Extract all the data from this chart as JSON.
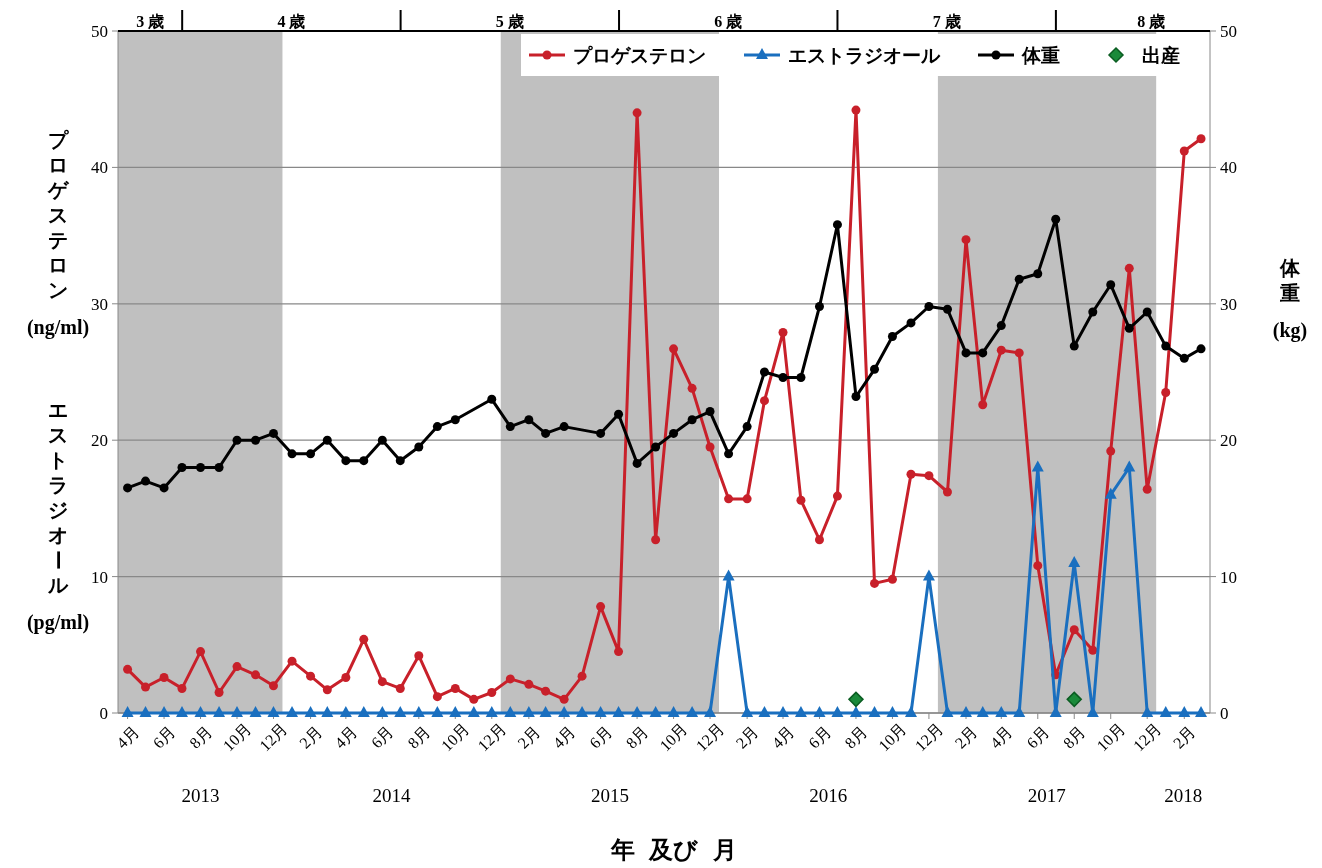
{
  "chart_data": {
    "type": "line",
    "x": [
      "2013-04",
      "2013-05",
      "2013-06",
      "2013-07",
      "2013-08",
      "2013-09",
      "2013-10",
      "2013-11",
      "2013-12",
      "2014-01",
      "2014-02",
      "2014-03",
      "2014-04",
      "2014-05",
      "2014-06",
      "2014-07",
      "2014-08",
      "2014-09",
      "2014-10",
      "2014-11",
      "2014-12",
      "2015-01",
      "2015-02",
      "2015-03",
      "2015-04",
      "2015-05",
      "2015-06",
      "2015-07",
      "2015-08",
      "2015-09",
      "2015-10",
      "2015-11",
      "2015-12",
      "2016-01",
      "2016-02",
      "2016-03",
      "2016-04",
      "2016-05",
      "2016-06",
      "2016-07",
      "2016-08",
      "2016-09",
      "2016-10",
      "2016-11",
      "2016-12",
      "2017-01",
      "2017-02",
      "2017-03",
      "2017-04",
      "2017-05",
      "2017-06",
      "2017-07",
      "2017-08",
      "2017-09",
      "2017-10",
      "2017-11",
      "2017-12",
      "2018-01",
      "2018-02",
      "2018-03"
    ],
    "xlim": [
      "2013-03-16",
      "2018-03-16"
    ],
    "xticks": [
      {
        "value": "2013-04",
        "label": "4月"
      },
      {
        "value": "2013-06",
        "label": "6月"
      },
      {
        "value": "2013-08",
        "label": "8月"
      },
      {
        "value": "2013-10",
        "label": "10月"
      },
      {
        "value": "2013-12",
        "label": "12月"
      },
      {
        "value": "2014-02",
        "label": "2月"
      },
      {
        "value": "2014-04",
        "label": "4月"
      },
      {
        "value": "2014-06",
        "label": "6月"
      },
      {
        "value": "2014-08",
        "label": "8月"
      },
      {
        "value": "2014-10",
        "label": "10月"
      },
      {
        "value": "2014-12",
        "label": "12月"
      },
      {
        "value": "2015-02",
        "label": "2月"
      },
      {
        "value": "2015-04",
        "label": "4月"
      },
      {
        "value": "2015-06",
        "label": "6月"
      },
      {
        "value": "2015-08",
        "label": "8月"
      },
      {
        "value": "2015-10",
        "label": "10月"
      },
      {
        "value": "2015-12",
        "label": "12月"
      },
      {
        "value": "2016-02",
        "label": "2月"
      },
      {
        "value": "2016-04",
        "label": "4月"
      },
      {
        "value": "2016-06",
        "label": "6月"
      },
      {
        "value": "2016-08",
        "label": "8月"
      },
      {
        "value": "2016-10",
        "label": "10月"
      },
      {
        "value": "2016-12",
        "label": "12月"
      },
      {
        "value": "2017-02",
        "label": "2月"
      },
      {
        "value": "2017-04",
        "label": "4月"
      },
      {
        "value": "2017-06",
        "label": "6月"
      },
      {
        "value": "2017-08",
        "label": "8月"
      },
      {
        "value": "2017-10",
        "label": "10月"
      },
      {
        "value": "2017-12",
        "label": "12月"
      },
      {
        "value": "2018-02",
        "label": "2月"
      }
    ],
    "xlabel": "年 及び 月",
    "ylabel": "プロゲステロン(ng/ml)\nエストラジオール(pg/ml)",
    "y2label": "体重(kg)",
    "ylim": [
      0,
      50
    ],
    "yticks": [
      0,
      10,
      20,
      30,
      40,
      50
    ],
    "y2lim": [
      0,
      50
    ],
    "y2ticks": [
      0,
      10,
      20,
      30,
      40,
      50
    ],
    "grid": "y",
    "legend": "top",
    "line_style": "solid",
    "series": [
      {
        "name": "プロゲステロン",
        "color": "#c8202a",
        "marker": "circle",
        "values": [
          3.2,
          1.9,
          2.6,
          1.8,
          4.5,
          1.5,
          3.4,
          2.8,
          2.0,
          3.8,
          2.7,
          1.7,
          2.6,
          5.4,
          2.3,
          1.8,
          4.2,
          1.2,
          1.8,
          1.0,
          1.5,
          2.5,
          2.1,
          1.6,
          1.0,
          2.7,
          7.8,
          4.5,
          44.0,
          12.7,
          26.7,
          23.8,
          19.5,
          15.7,
          15.7,
          22.9,
          27.9,
          15.6,
          12.7,
          15.9,
          44.2,
          9.5,
          9.8,
          17.5,
          17.4,
          16.2,
          34.7,
          22.6,
          26.6,
          26.4,
          10.8,
          2.8,
          6.1,
          4.6,
          19.2,
          32.6,
          16.4,
          23.5,
          41.2,
          42.1
        ]
      },
      {
        "name": "エストラジオール",
        "color": "#1a6fbf",
        "marker": "triangle",
        "values": [
          0,
          0,
          0,
          0,
          0,
          0,
          0,
          0,
          0,
          0,
          0,
          0,
          0,
          0,
          0,
          0,
          0,
          0,
          0,
          0,
          0,
          0,
          0,
          0,
          0,
          0,
          0,
          0,
          0,
          0,
          0,
          0,
          0,
          10,
          0,
          0,
          0,
          0,
          0,
          0,
          0,
          0,
          0,
          0,
          10,
          0,
          0,
          0,
          0,
          0,
          18,
          0,
          11,
          0,
          16,
          18,
          0,
          0,
          0,
          0
        ]
      },
      {
        "name": "体重",
        "color": "#000000",
        "marker": "circle",
        "values": [
          16.5,
          17.0,
          16.5,
          18.0,
          18.0,
          18.0,
          20.0,
          20.0,
          20.5,
          19.0,
          19.0,
          20.0,
          18.5,
          18.5,
          20.0,
          18.5,
          19.5,
          21.0,
          21.5,
          null,
          23.0,
          21.0,
          21.5,
          20.5,
          21.0,
          null,
          20.5,
          21.9,
          18.3,
          19.5,
          20.5,
          21.5,
          22.1,
          19.0,
          21.0,
          25.0,
          24.6,
          24.6,
          29.8,
          35.8,
          23.2,
          25.2,
          27.6,
          28.6,
          29.8,
          29.6,
          26.4,
          26.4,
          28.4,
          31.8,
          32.2,
          36.2,
          26.9,
          29.4,
          31.4,
          28.2,
          29.4,
          26.9,
          26.0,
          26.7
        ]
      },
      {
        "name": "出産",
        "type": "scatter",
        "color": "#1a8a3a",
        "marker": "diamond",
        "x": [
          "2016-08",
          "2017-08"
        ],
        "values": [
          1,
          1
        ]
      }
    ],
    "bands": [
      {
        "axis": "x",
        "from": "2013-03-16",
        "to": "2013-12-16",
        "color": "#c0c0c0"
      },
      {
        "axis": "x",
        "from": "2014-12-16",
        "to": "2015-12-16",
        "color": "#c0c0c0"
      },
      {
        "axis": "x",
        "from": "2016-12-16",
        "to": "2017-12-16",
        "color": "#c0c0c0"
      }
    ],
    "annotations": [
      "3 歳",
      "4 歳",
      "5 歳",
      "6 歳",
      "7 歳",
      "8 歳",
      "2013",
      "2014",
      "2015",
      "2016",
      "2017",
      "2018"
    ]
  }
}
